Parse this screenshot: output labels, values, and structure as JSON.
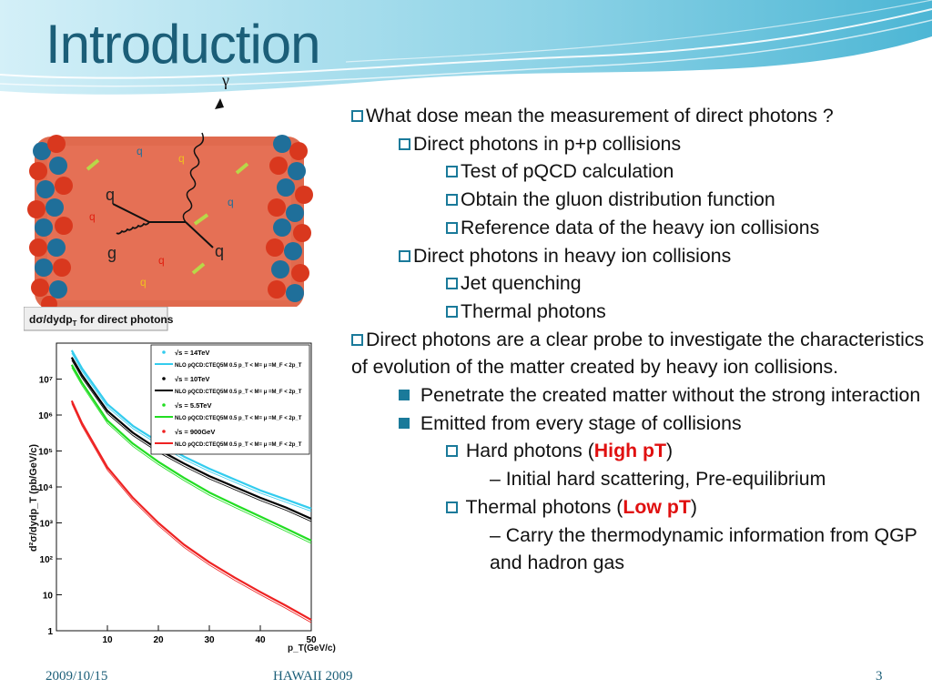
{
  "slide": {
    "title": "Introduction",
    "footer": {
      "date": "2009/10/15",
      "center": "HAWAII 2009",
      "page": "3"
    }
  },
  "diagram": {
    "photon_label": "γ",
    "labels": {
      "q": "q",
      "g": "g"
    }
  },
  "plot": {
    "title": "dσ/dydp",
    "title_sub": "T",
    "title_suffix": " for direct photons",
    "ylabel": "d²σ/dydp_T (pb/GeV/c)",
    "xlabel": "p_T(GeV/c)",
    "legend": [
      {
        "marker": "√s = 14TeV",
        "line": "NLO pQCD:CTEQ5M 0.5 p_T < M= μ =M_F < 2p_T",
        "color": "#33ccee"
      },
      {
        "marker": "√s = 10TeV",
        "line": "NLO pQCD:CTEQ5M 0.5 p_T < M= μ =M_F < 2p_T",
        "color": "#000000"
      },
      {
        "marker": "√s = 5.5TeV",
        "line": "NLO pQCD:CTEQ5M 0.5 p_T < M= μ =M_F < 2p_T",
        "color": "#22dd22"
      },
      {
        "marker": "√s = 900GeV",
        "line": "NLO pQCD:CTEQ5M 0.5 p_T < M= μ =M_F < 2p_T",
        "color": "#ee2222"
      }
    ],
    "xticks": [
      "10",
      "20",
      "30",
      "40",
      "50"
    ],
    "yticks": [
      "1",
      "10",
      "10²",
      "10³",
      "10⁴",
      "10⁵",
      "10⁶",
      "10⁷"
    ]
  },
  "chart_data": {
    "type": "line",
    "xlabel": "p_T(GeV/c)",
    "ylabel": "d²σ/dydp_T (pb/GeV/c)",
    "xlim": [
      0,
      50
    ],
    "ylim_log10": [
      0,
      8
    ],
    "yscale": "log",
    "x": [
      3,
      5,
      10,
      15,
      20,
      25,
      30,
      35,
      40,
      45,
      50
    ],
    "series": [
      {
        "name": "√s = 14TeV",
        "color": "#33ccee",
        "values": [
          63000000.0,
          20000000.0,
          2000000.0,
          500000.0,
          180000.0,
          70000.0,
          32000.0,
          16000.0,
          8000.0,
          4500.0,
          2500.0
        ]
      },
      {
        "name": "√s = 10TeV",
        "color": "#000000",
        "values": [
          40000000.0,
          13000000.0,
          1300000.0,
          320000.0,
          110000.0,
          45000.0,
          20000.0,
          10000.0,
          5000.0,
          2700.0,
          1300.0
        ]
      },
      {
        "name": "√s = 5.5TeV",
        "color": "#22dd22",
        "values": [
          25000000.0,
          8000000.0,
          700000.0,
          160000.0,
          50000.0,
          18000.0,
          7000.0,
          3200.0,
          1500.0,
          700.0,
          320.0
        ]
      },
      {
        "name": "√s = 900GeV",
        "color": "#ee2222",
        "values": [
          2500000.0,
          600000.0,
          35000.0,
          5000.0,
          1000.0,
          250.0,
          80,
          30,
          12,
          5,
          2
        ]
      }
    ]
  },
  "bullets": [
    {
      "level": 1,
      "marker": "square",
      "text": "What dose mean the measurement of direct photons ?"
    },
    {
      "level": 2,
      "marker": "square",
      "text": "Direct photons in p+p collisions"
    },
    {
      "level": 3,
      "marker": "square",
      "text": "Test of pQCD calculation"
    },
    {
      "level": 3,
      "marker": "square",
      "text": "Obtain the gluon distribution function"
    },
    {
      "level": 3,
      "marker": "square",
      "text": "Reference data of the heavy ion collisions"
    },
    {
      "level": 2,
      "marker": "square",
      "text": "Direct photons in heavy ion collisions"
    },
    {
      "level": 3,
      "marker": "square",
      "text": "Jet quenching"
    },
    {
      "level": 3,
      "marker": "square",
      "text": "Thermal photons"
    },
    {
      "level": 1,
      "marker": "square",
      "text": "Direct photons are a clear probe to investigate the characteristics of evolution of the matter created by heavy ion collisions."
    },
    {
      "level": 2,
      "marker": "filled",
      "text": " Penetrate the created matter without the strong interaction"
    },
    {
      "level": 2,
      "marker": "filled",
      "text": " Emitted from every stage of collisions"
    },
    {
      "level": 3,
      "marker": "square",
      "text": " Hard photons (",
      "highlight": "High pT",
      "tail": ")"
    },
    {
      "level": 4,
      "marker": "dash",
      "text": "– Initial hard scattering, Pre-equilibrium"
    },
    {
      "level": 3,
      "marker": "square",
      "text": " Thermal photons (",
      "highlight": "Low pT",
      "tail": ")"
    },
    {
      "level": 4,
      "marker": "dash",
      "text": "– Carry the thermodynamic information from QGP and  hadron gas"
    }
  ]
}
